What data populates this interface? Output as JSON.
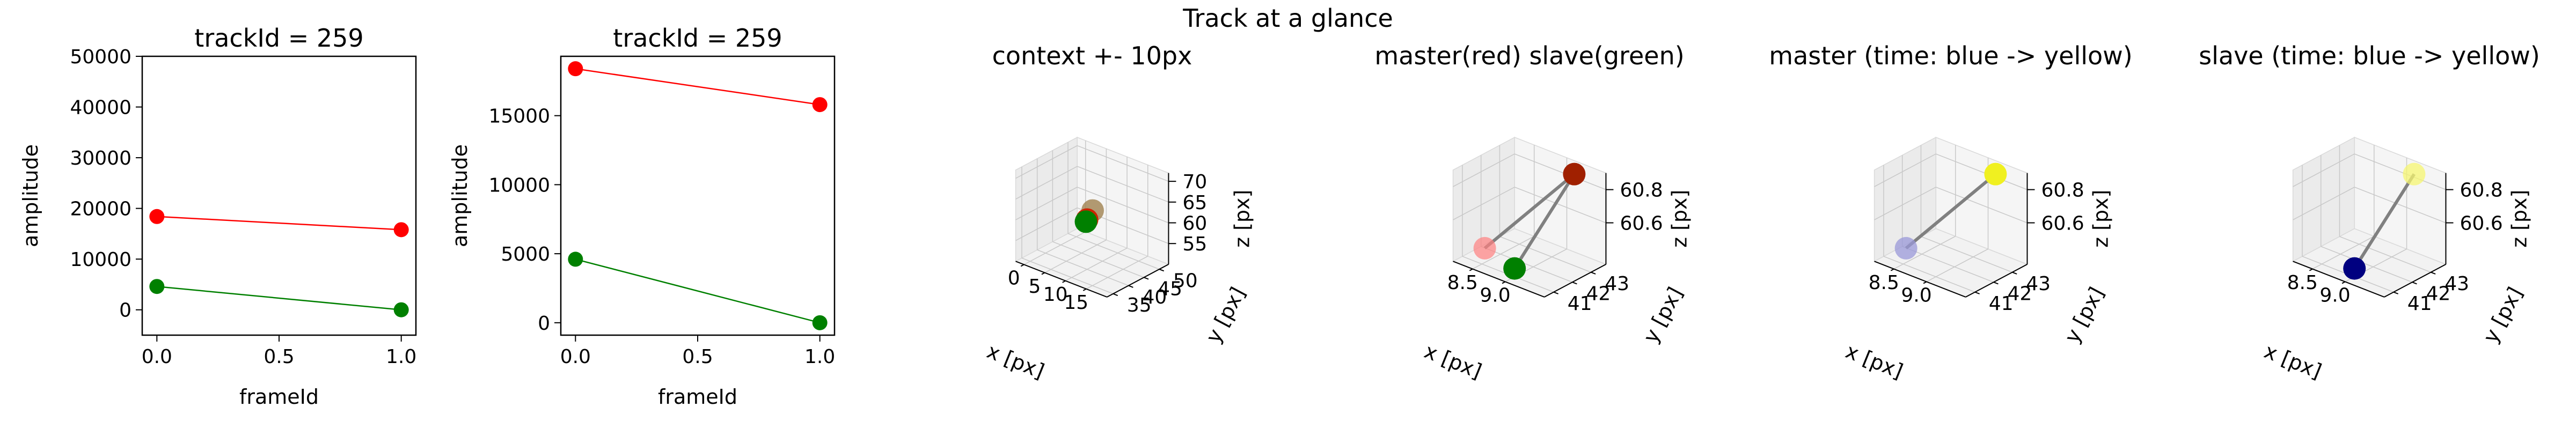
{
  "figure": {
    "suptitle": "Track at a glance"
  },
  "colors": {
    "red": "#ff0000",
    "green": "#008000",
    "axis": "#000000"
  },
  "chart_data": [
    {
      "id": "amp1",
      "type": "line",
      "title": "trackId = 259",
      "xlabel": "frameId",
      "ylabel": "amplitude",
      "xlim": [
        -0.06,
        1.06
      ],
      "ylim": [
        -5000,
        50000
      ],
      "xticks": [
        0,
        0.5,
        1
      ],
      "xtick_labels": [
        "0.0",
        "0.5",
        "1.0"
      ],
      "yticks": [
        0,
        10000,
        20000,
        30000,
        40000,
        50000
      ],
      "ytick_labels": [
        "0",
        "10000",
        "20000",
        "30000",
        "40000",
        "50000"
      ],
      "x": [
        0,
        1
      ],
      "series": [
        {
          "color": "#ff0000",
          "values": [
            18400,
            15800
          ]
        },
        {
          "color": "#008000",
          "values": [
            4600,
            0
          ]
        }
      ]
    },
    {
      "id": "amp2",
      "type": "line",
      "title": "trackId = 259",
      "xlabel": "frameId",
      "ylabel": "amplitude",
      "xlim": [
        -0.06,
        1.06
      ],
      "ylim": [
        -900,
        19300
      ],
      "xticks": [
        0,
        0.5,
        1
      ],
      "xtick_labels": [
        "0.0",
        "0.5",
        "1.0"
      ],
      "yticks": [
        0,
        5000,
        10000,
        15000
      ],
      "ytick_labels": [
        "0",
        "5000",
        "10000",
        "15000"
      ],
      "x": [
        0,
        1
      ],
      "series": [
        {
          "color": "#ff0000",
          "values": [
            18400,
            15800
          ]
        },
        {
          "color": "#008000",
          "values": [
            4600,
            0
          ]
        }
      ]
    },
    {
      "id": "ctx",
      "type": "scatter",
      "title": "context +- 10px",
      "xlabel": "x [px]",
      "ylabel": "y [px]",
      "zlabel": "z [px]",
      "xlim": [
        -2,
        20
      ],
      "ylim": [
        33,
        53
      ],
      "zlim": [
        50,
        72
      ],
      "xticks": [
        0,
        5,
        10,
        15
      ],
      "xtick_labels": [
        "0",
        "5",
        "10",
        "15"
      ],
      "yticks": [
        35,
        40,
        45,
        50
      ],
      "ytick_labels": [
        "35",
        "40",
        "45",
        "50"
      ],
      "zticks": [
        55,
        60,
        65,
        70
      ],
      "ztick_labels": [
        "55",
        "60",
        "65",
        "70"
      ],
      "points": [
        {
          "x": 9.5,
          "y": 42.5,
          "z": 63,
          "color": "#a08250",
          "opacity": 0.8
        },
        {
          "x": 8.6,
          "y": 41.9,
          "z": 60.7,
          "color": "#cc2200",
          "opacity": 1
        },
        {
          "x": 9.0,
          "y": 41.0,
          "z": 60.7,
          "color": "#008000",
          "opacity": 1
        }
      ],
      "segments": []
    },
    {
      "id": "ms",
      "type": "scatter",
      "title": "master(red) slave(green)",
      "xlabel": "x [px]",
      "ylabel": "y [px]",
      "zlabel": "z [px]",
      "xlim": [
        8.2,
        9.6
      ],
      "ylim": [
        40.5,
        43.8
      ],
      "zlim": [
        60.35,
        60.9
      ],
      "xticks": [
        8.5,
        9.0
      ],
      "xtick_labels": [
        "8.5",
        "9.0"
      ],
      "yticks": [
        41,
        42,
        43
      ],
      "ytick_labels": [
        "41",
        "42",
        "43"
      ],
      "zticks": [
        60.6,
        60.8
      ],
      "ztick_labels": [
        "60.6",
        "60.8"
      ],
      "points": [
        {
          "x": 8.4,
          "y": 41.5,
          "z": 60.4,
          "color": "#ff8080",
          "opacity": 0.7
        },
        {
          "x": 9.0,
          "y": 41.0,
          "z": 60.4,
          "color": "#008000",
          "opacity": 1
        },
        {
          "x": 9.2,
          "y": 43.5,
          "z": 60.85,
          "color": "#a02000",
          "opacity": 1
        }
      ],
      "segments": [
        {
          "from": [
            8.4,
            41.5,
            60.4
          ],
          "to": [
            9.2,
            43.5,
            60.85
          ],
          "color": "#808080"
        },
        {
          "from": [
            9.0,
            41.0,
            60.4
          ],
          "to": [
            9.2,
            43.5,
            60.85
          ],
          "color": "#808080"
        }
      ]
    },
    {
      "id": "mst",
      "type": "scatter",
      "title": "master (time: blue -> yellow)",
      "xlabel": "x [px]",
      "ylabel": "y [px]",
      "zlabel": "z [px]",
      "xlim": [
        8.2,
        9.6
      ],
      "ylim": [
        40.5,
        43.8
      ],
      "zlim": [
        60.35,
        60.9
      ],
      "xticks": [
        8.5,
        9.0
      ],
      "xtick_labels": [
        "8.5",
        "9.0"
      ],
      "yticks": [
        41,
        42,
        43
      ],
      "ytick_labels": [
        "41",
        "42",
        "43"
      ],
      "zticks": [
        60.6,
        60.8
      ],
      "ztick_labels": [
        "60.6",
        "60.8"
      ],
      "points": [
        {
          "x": 8.4,
          "y": 41.5,
          "z": 60.4,
          "color": "#9a98d8",
          "opacity": 0.75
        },
        {
          "x": 9.2,
          "y": 43.5,
          "z": 60.85,
          "color": "#f0f020",
          "opacity": 1
        }
      ],
      "segments": [
        {
          "from": [
            8.4,
            41.5,
            60.4
          ],
          "to": [
            9.2,
            43.5,
            60.85
          ],
          "color": "#808080"
        }
      ]
    },
    {
      "id": "slv",
      "type": "scatter",
      "title": "slave (time: blue -> yellow)",
      "xlabel": "x [px]",
      "ylabel": "y [px]",
      "zlabel": "z [px]",
      "xlim": [
        8.2,
        9.6
      ],
      "ylim": [
        40.5,
        43.8
      ],
      "zlim": [
        60.35,
        60.9
      ],
      "xticks": [
        8.5,
        9.0
      ],
      "xtick_labels": [
        "8.5",
        "9.0"
      ],
      "yticks": [
        41,
        42,
        43
      ],
      "ytick_labels": [
        "41",
        "42",
        "43"
      ],
      "zticks": [
        60.6,
        60.8
      ],
      "ztick_labels": [
        "60.6",
        "60.8"
      ],
      "points": [
        {
          "x": 9.0,
          "y": 41.0,
          "z": 60.4,
          "color": "#000080",
          "opacity": 1
        },
        {
          "x": 9.2,
          "y": 43.5,
          "z": 60.85,
          "color": "#f5f570",
          "opacity": 0.75
        }
      ],
      "segments": [
        {
          "from": [
            9.0,
            41.0,
            60.4
          ],
          "to": [
            9.2,
            43.5,
            60.85
          ],
          "color": "#808080"
        }
      ]
    }
  ]
}
